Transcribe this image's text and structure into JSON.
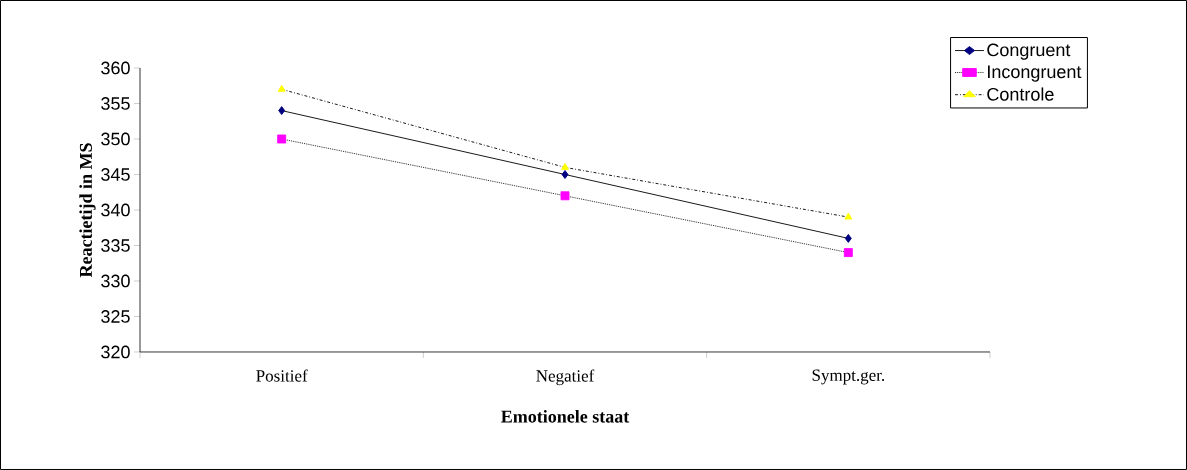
{
  "chart_data": {
    "type": "line",
    "xlabel": "Emotionele staat",
    "ylabel": "Reactietijd in MS",
    "categories": [
      "Positief",
      "Negatief",
      "Sympt.ger."
    ],
    "series": [
      {
        "name": "Congruent",
        "color": "#000080",
        "values": [
          354,
          345,
          336
        ],
        "marker": "diamond",
        "line_style": "solid"
      },
      {
        "name": "Incongruent",
        "color": "#ff00ff",
        "values": [
          350,
          342,
          334
        ],
        "marker": "square",
        "line_style": "dotted"
      },
      {
        "name": "Controle",
        "color": "#ffff00",
        "values": [
          357,
          346,
          339
        ],
        "marker": "triangle",
        "line_style": "dashed"
      }
    ],
    "ylim": [
      320,
      360
    ],
    "yticks": [
      320,
      325,
      330,
      335,
      340,
      345,
      350,
      355,
      360
    ],
    "grid": false,
    "legend": "top right"
  }
}
